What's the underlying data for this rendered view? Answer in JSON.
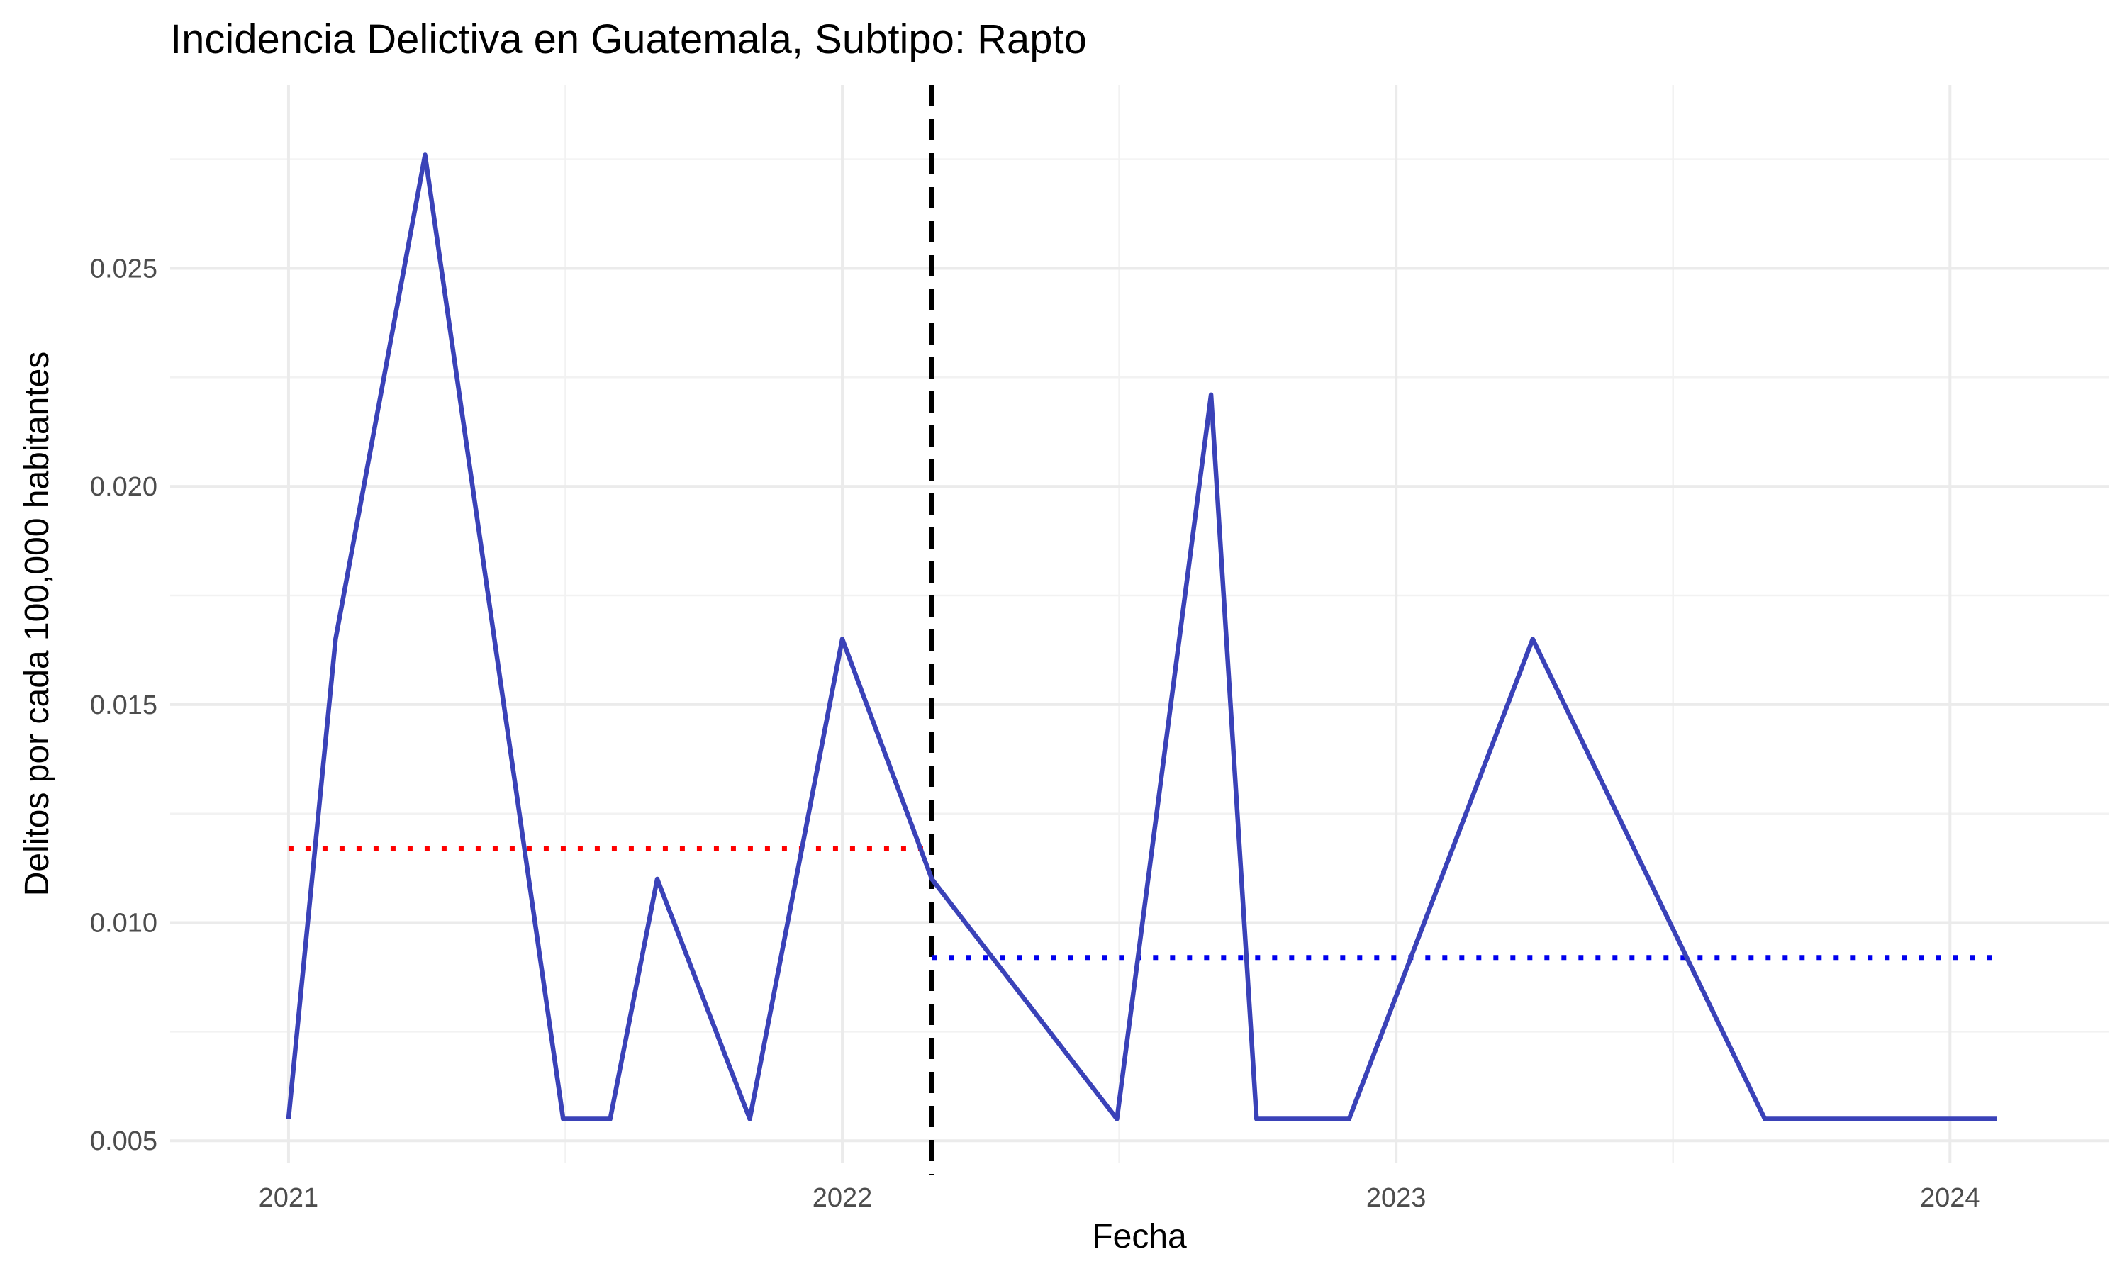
{
  "chart_data": {
    "type": "line",
    "title": "Incidencia Delictiva en Guatemala, Subtipo: Rapto",
    "xlabel": "Fecha",
    "ylabel": "Delitos por cada 100,000 habitantes",
    "x_tick_labels": [
      "2021",
      "2022",
      "2023",
      "2024"
    ],
    "y_tick_labels": [
      "0.005",
      "0.010",
      "0.015",
      "0.020",
      "0.025"
    ],
    "y_ticks": [
      0.005,
      0.01,
      0.015,
      0.02,
      0.025
    ],
    "x_ticks": [
      "2021-01-01",
      "2022-01-01",
      "2023-01-01",
      "2024-01-01"
    ],
    "xlim": [
      "2020-10-15",
      "2024-04-15"
    ],
    "ylim": [
      0.0045,
      0.0292
    ],
    "grid": true,
    "series": [
      {
        "color": "#3a42b8",
        "points": [
          {
            "x": "2021-01-01",
            "y": 0.0055
          },
          {
            "x": "2021-02-01",
            "y": 0.0165
          },
          {
            "x": "2021-04-01",
            "y": 0.0276
          },
          {
            "x": "2021-07-01",
            "y": 0.0055
          },
          {
            "x": "2021-08-01",
            "y": 0.0055
          },
          {
            "x": "2021-09-01",
            "y": 0.011
          },
          {
            "x": "2021-11-01",
            "y": 0.0055
          },
          {
            "x": "2022-01-01",
            "y": 0.0165
          },
          {
            "x": "2022-03-01",
            "y": 0.011
          },
          {
            "x": "2022-07-01",
            "y": 0.0055
          },
          {
            "x": "2022-09-01",
            "y": 0.0221
          },
          {
            "x": "2022-10-01",
            "y": 0.0055
          },
          {
            "x": "2022-12-01",
            "y": 0.0055
          },
          {
            "x": "2023-04-01",
            "y": 0.0165
          },
          {
            "x": "2023-09-01",
            "y": 0.0055
          },
          {
            "x": "2024-02-01",
            "y": 0.0055
          }
        ]
      }
    ],
    "reference_lines": [
      {
        "kind": "vertical",
        "style": "dashed",
        "color": "#000000",
        "x": "2022-03-01"
      },
      {
        "kind": "horizontal",
        "style": "dotted",
        "color": "#ff0000",
        "y": 0.0117,
        "x_from": "2021-01-01",
        "x_to": "2022-03-01"
      },
      {
        "kind": "horizontal",
        "style": "dotted",
        "color": "#0000ee",
        "y": 0.0092,
        "x_from": "2022-03-01",
        "x_to": "2024-02-01"
      }
    ]
  }
}
